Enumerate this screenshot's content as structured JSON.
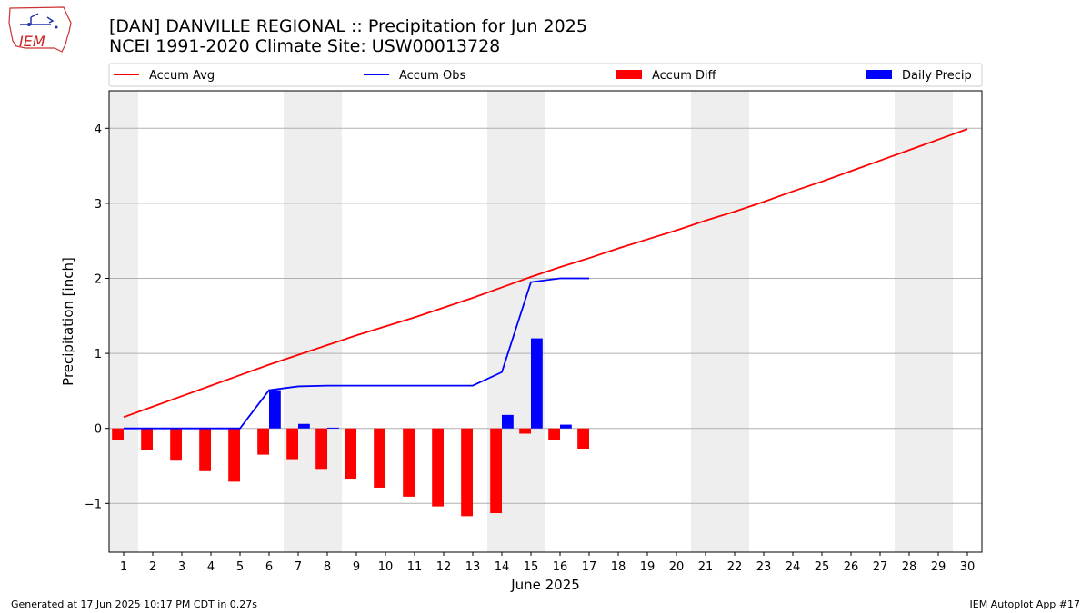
{
  "page": {
    "title_line1": "[DAN] DANVILLE REGIONAL :: Precipitation for Jun 2025",
    "title_line2": "NCEI 1991-2020 Climate Site: USW00013728",
    "logo_text": "IEM",
    "footer_left": "Generated at 17 Jun 2025 10:17 PM CDT in 0.27s",
    "footer_right": "IEM Autoplot App #17"
  },
  "chart_data": {
    "type": "bar",
    "xlabel": "June 2025",
    "ylabel": "Precipitation [inch]",
    "ylim": [
      -1.65,
      4.5
    ],
    "xlim": [
      0.5,
      30.5
    ],
    "yticks": [
      -1,
      0,
      1,
      2,
      3,
      4
    ],
    "ytick_labels": [
      "−1",
      "0",
      "1",
      "2",
      "3",
      "4"
    ],
    "days": [
      1,
      2,
      3,
      4,
      5,
      6,
      7,
      8,
      9,
      10,
      11,
      12,
      13,
      14,
      15,
      16,
      17,
      18,
      19,
      20,
      21,
      22,
      23,
      24,
      25,
      26,
      27,
      28,
      29,
      30
    ],
    "weekend_days": [
      1,
      7,
      8,
      14,
      15,
      21,
      22,
      28,
      29
    ],
    "grid": "horizontal",
    "legend_position": "top",
    "series": [
      {
        "name": "Accum Avg",
        "kind": "line",
        "color": "#ff0000",
        "x": [
          1,
          2,
          3,
          4,
          5,
          6,
          7,
          8,
          9,
          10,
          11,
          12,
          13,
          14,
          15,
          16,
          17,
          18,
          19,
          20,
          21,
          22,
          23,
          24,
          25,
          26,
          27,
          28,
          29,
          30
        ],
        "values": [
          0.15,
          0.29,
          0.43,
          0.57,
          0.71,
          0.85,
          0.98,
          1.11,
          1.24,
          1.36,
          1.48,
          1.61,
          1.74,
          1.88,
          2.02,
          2.15,
          2.27,
          2.4,
          2.52,
          2.64,
          2.77,
          2.89,
          3.02,
          3.16,
          3.29,
          3.43,
          3.57,
          3.71,
          3.85,
          3.99
        ]
      },
      {
        "name": "Accum Obs",
        "kind": "line",
        "color": "#0000ff",
        "x": [
          1,
          2,
          3,
          4,
          5,
          6,
          7,
          8,
          9,
          10,
          11,
          12,
          13,
          14,
          15,
          16,
          17
        ],
        "values": [
          0.0,
          0.0,
          0.0,
          0.0,
          0.0,
          0.51,
          0.56,
          0.57,
          0.57,
          0.57,
          0.57,
          0.57,
          0.57,
          0.75,
          1.95,
          2.0,
          2.0
        ]
      },
      {
        "name": "Accum Diff",
        "kind": "bar",
        "color": "#ff0000",
        "offset": -0.2,
        "x": [
          1,
          2,
          3,
          4,
          5,
          6,
          7,
          8,
          9,
          10,
          11,
          12,
          13,
          14,
          15,
          16,
          17
        ],
        "values": [
          -0.15,
          -0.29,
          -0.43,
          -0.57,
          -0.71,
          -0.35,
          -0.41,
          -0.54,
          -0.67,
          -0.79,
          -0.91,
          -1.04,
          -1.17,
          -1.13,
          -0.07,
          -0.15,
          -0.27
        ]
      },
      {
        "name": "Daily Precip",
        "kind": "bar",
        "color": "#0000ff",
        "offset": 0.2,
        "x": [
          1,
          2,
          3,
          4,
          5,
          6,
          7,
          8,
          9,
          10,
          11,
          12,
          13,
          14,
          15,
          16,
          17
        ],
        "values": [
          0,
          0,
          0,
          0,
          0,
          0.51,
          0.06,
          0.01,
          0,
          0,
          0,
          0,
          0,
          0.18,
          1.2,
          0.05,
          0
        ]
      }
    ]
  }
}
